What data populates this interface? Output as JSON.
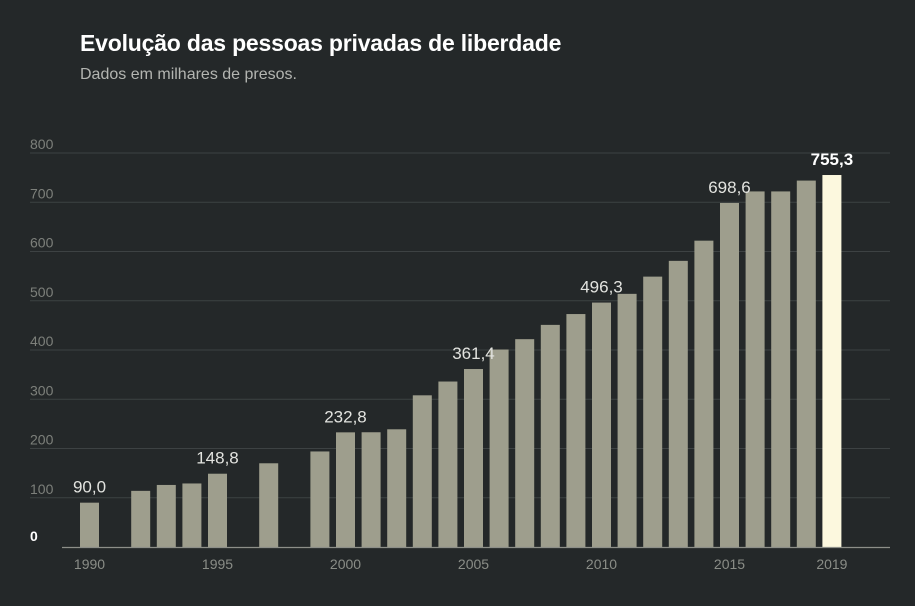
{
  "header": {
    "title": "Evolução das pessoas privadas de liberdade",
    "subtitle": "Dados em milhares de presos."
  },
  "chart_data": {
    "type": "bar",
    "title": "Evolução das pessoas privadas de liberdade",
    "subtitle": "Dados em milhares de presos.",
    "xlabel": "",
    "ylabel": "",
    "ylim": [
      0,
      800
    ],
    "y_ticks": [
      0,
      100,
      200,
      300,
      400,
      500,
      600,
      700,
      800
    ],
    "y_tick_labels": [
      "0",
      "100",
      "200",
      "300",
      "400",
      "500",
      "600",
      "700",
      "800"
    ],
    "x_tick_labels": [
      "1990",
      "1995",
      "2000",
      "2005",
      "2010",
      "2015",
      "2019"
    ],
    "x_ticks": [
      1990,
      1995,
      2000,
      2005,
      2010,
      2015,
      2019
    ],
    "grid": true,
    "highlight_color": "#fcf8de",
    "bar_color": "#9e9e8d",
    "points": [
      {
        "year": 1990,
        "value": 90.0,
        "label": "90,0"
      },
      {
        "year": 1992,
        "value": 114
      },
      {
        "year": 1993,
        "value": 126
      },
      {
        "year": 1994,
        "value": 129
      },
      {
        "year": 1995,
        "value": 148.8,
        "label": "148,8"
      },
      {
        "year": 1997,
        "value": 170
      },
      {
        "year": 1999,
        "value": 194
      },
      {
        "year": 2000,
        "value": 232.8,
        "label": "232,8"
      },
      {
        "year": 2001,
        "value": 233
      },
      {
        "year": 2002,
        "value": 239
      },
      {
        "year": 2003,
        "value": 308
      },
      {
        "year": 2004,
        "value": 336
      },
      {
        "year": 2005,
        "value": 361.4,
        "label": "361,4"
      },
      {
        "year": 2006,
        "value": 401
      },
      {
        "year": 2007,
        "value": 422
      },
      {
        "year": 2008,
        "value": 451
      },
      {
        "year": 2009,
        "value": 473
      },
      {
        "year": 2010,
        "value": 496.3,
        "label": "496,3"
      },
      {
        "year": 2011,
        "value": 514
      },
      {
        "year": 2012,
        "value": 549
      },
      {
        "year": 2013,
        "value": 581
      },
      {
        "year": 2014,
        "value": 622
      },
      {
        "year": 2015,
        "value": 698.6,
        "label": "698,6"
      },
      {
        "year": 2016,
        "value": 722
      },
      {
        "year": 2017,
        "value": 722
      },
      {
        "year": 2018,
        "value": 744
      },
      {
        "year": 2019,
        "value": 755.3,
        "label": "755,3",
        "highlight": true
      }
    ]
  }
}
